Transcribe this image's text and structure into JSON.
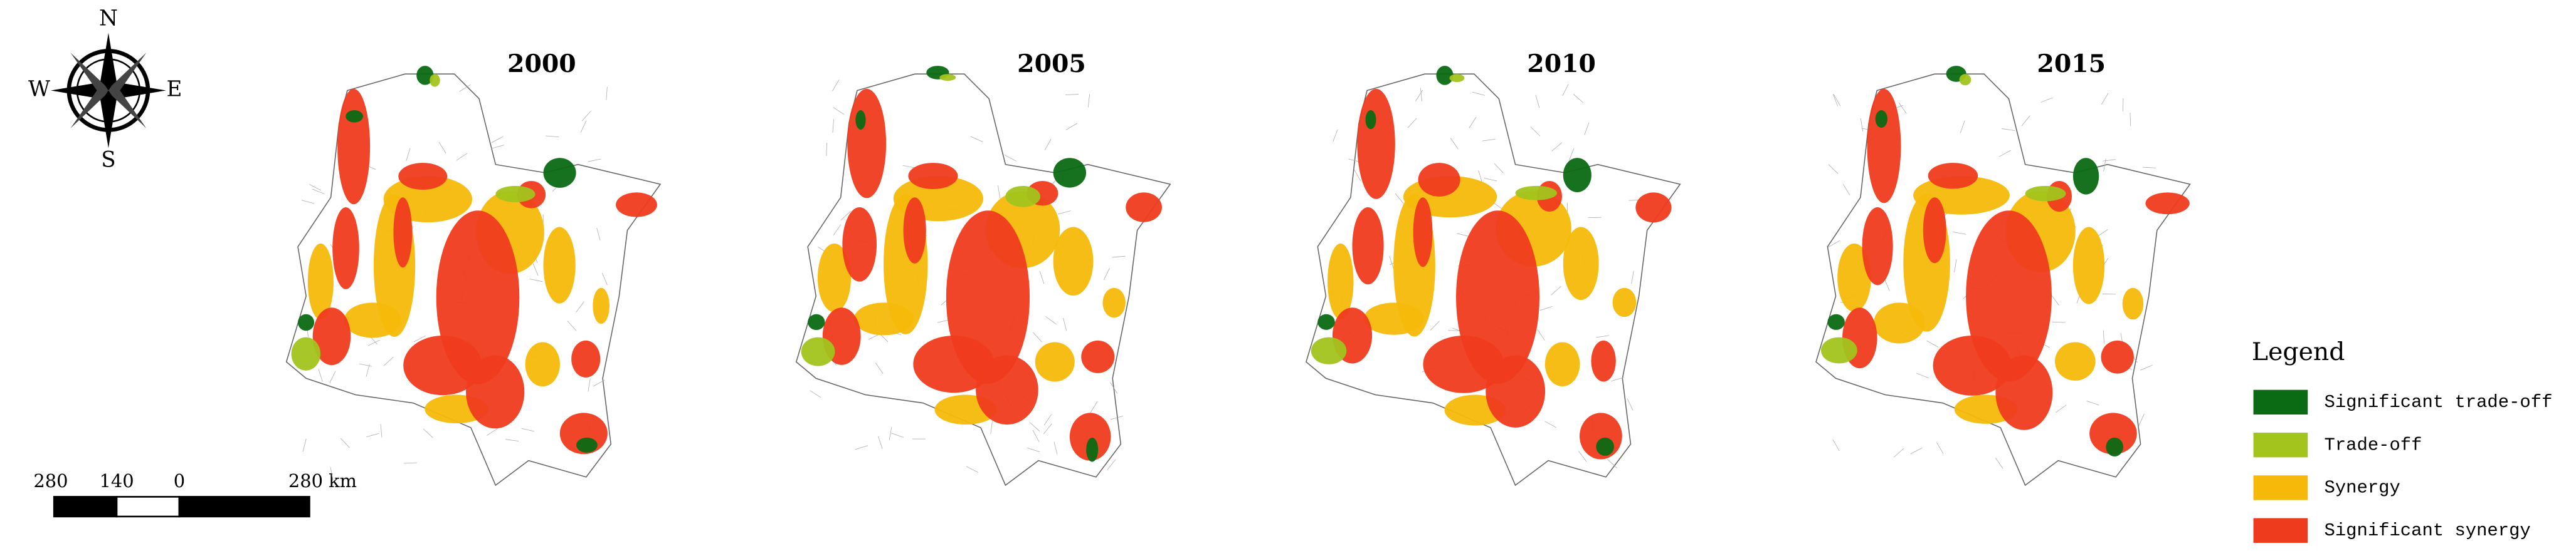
{
  "compass": {
    "north": "N",
    "east": "E",
    "south": "S",
    "west": "W"
  },
  "scale_bar": {
    "labels": [
      "280",
      "140",
      "0",
      "280 km"
    ]
  },
  "maps": [
    {
      "title": "2000"
    },
    {
      "title": "2005"
    },
    {
      "title": "2010"
    },
    {
      "title": "2015"
    }
  ],
  "legend": {
    "title": "Legend",
    "items": [
      {
        "label": "Significant trade-off",
        "color": "#0b6a14"
      },
      {
        "label": "Trade-off",
        "color": "#a2c41c"
      },
      {
        "label": "Synergy",
        "color": "#f6b90a"
      },
      {
        "label": "Significant synergy",
        "color": "#ef3b1d"
      }
    ]
  }
}
